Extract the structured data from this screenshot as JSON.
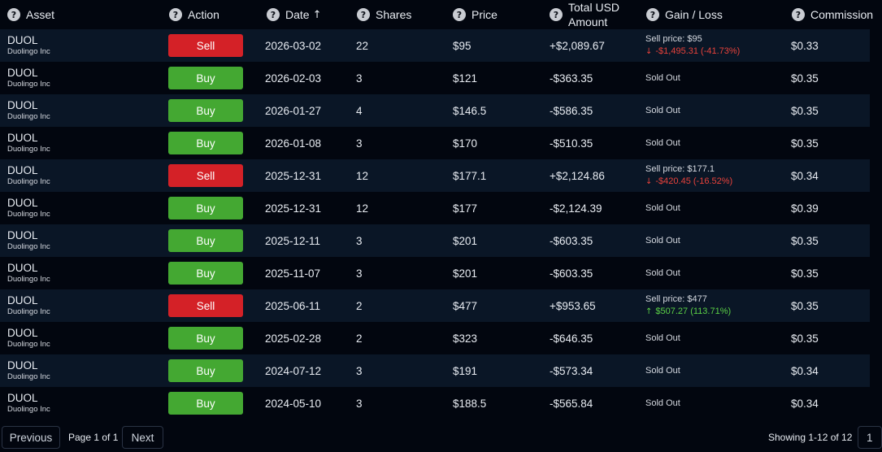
{
  "headers": {
    "asset": "Asset",
    "action": "Action",
    "date": "Date",
    "shares": "Shares",
    "price": "Price",
    "total_line1": "Total USD",
    "total_line2": "Amount",
    "gain_loss": "Gain / Loss",
    "commission": "Commission",
    "help_glyph": "?",
    "sort_glyph": "↑"
  },
  "rows": [
    {
      "ticker": "DUOL",
      "company": "Duolingo Inc",
      "action": "Sell",
      "date": "2026-03-02",
      "shares": "22",
      "price": "$95",
      "total": "+$2,089.67",
      "gain_type": "sale",
      "sell_price": "Sell price: $95",
      "change": "-$1,495.31 (-41.73%)",
      "direction": "down",
      "commission": "$0.33"
    },
    {
      "ticker": "DUOL",
      "company": "Duolingo Inc",
      "action": "Buy",
      "date": "2026-02-03",
      "shares": "3",
      "price": "$121",
      "total": "-$363.35",
      "gain_type": "soldout",
      "status": "Sold Out",
      "commission": "$0.35"
    },
    {
      "ticker": "DUOL",
      "company": "Duolingo Inc",
      "action": "Buy",
      "date": "2026-01-27",
      "shares": "4",
      "price": "$146.5",
      "total": "-$586.35",
      "gain_type": "soldout",
      "status": "Sold Out",
      "commission": "$0.35"
    },
    {
      "ticker": "DUOL",
      "company": "Duolingo Inc",
      "action": "Buy",
      "date": "2026-01-08",
      "shares": "3",
      "price": "$170",
      "total": "-$510.35",
      "gain_type": "soldout",
      "status": "Sold Out",
      "commission": "$0.35"
    },
    {
      "ticker": "DUOL",
      "company": "Duolingo Inc",
      "action": "Sell",
      "date": "2025-12-31",
      "shares": "12",
      "price": "$177.1",
      "total": "+$2,124.86",
      "gain_type": "sale",
      "sell_price": "Sell price: $177.1",
      "change": "-$420.45 (-16.52%)",
      "direction": "down",
      "commission": "$0.34"
    },
    {
      "ticker": "DUOL",
      "company": "Duolingo Inc",
      "action": "Buy",
      "date": "2025-12-31",
      "shares": "12",
      "price": "$177",
      "total": "-$2,124.39",
      "gain_type": "soldout",
      "status": "Sold Out",
      "commission": "$0.39"
    },
    {
      "ticker": "DUOL",
      "company": "Duolingo Inc",
      "action": "Buy",
      "date": "2025-12-11",
      "shares": "3",
      "price": "$201",
      "total": "-$603.35",
      "gain_type": "soldout",
      "status": "Sold Out",
      "commission": "$0.35"
    },
    {
      "ticker": "DUOL",
      "company": "Duolingo Inc",
      "action": "Buy",
      "date": "2025-11-07",
      "shares": "3",
      "price": "$201",
      "total": "-$603.35",
      "gain_type": "soldout",
      "status": "Sold Out",
      "commission": "$0.35"
    },
    {
      "ticker": "DUOL",
      "company": "Duolingo Inc",
      "action": "Sell",
      "date": "2025-06-11",
      "shares": "2",
      "price": "$477",
      "total": "+$953.65",
      "gain_type": "sale",
      "sell_price": "Sell price: $477",
      "change": "$507.27 (113.71%)",
      "direction": "up",
      "commission": "$0.35"
    },
    {
      "ticker": "DUOL",
      "company": "Duolingo Inc",
      "action": "Buy",
      "date": "2025-02-28",
      "shares": "2",
      "price": "$323",
      "total": "-$646.35",
      "gain_type": "soldout",
      "status": "Sold Out",
      "commission": "$0.35"
    },
    {
      "ticker": "DUOL",
      "company": "Duolingo Inc",
      "action": "Buy",
      "date": "2024-07-12",
      "shares": "3",
      "price": "$191",
      "total": "-$573.34",
      "gain_type": "soldout",
      "status": "Sold Out",
      "commission": "$0.34"
    },
    {
      "ticker": "DUOL",
      "company": "Duolingo Inc",
      "action": "Buy",
      "date": "2024-05-10",
      "shares": "3",
      "price": "$188.5",
      "total": "-$565.84",
      "gain_type": "soldout",
      "status": "Sold Out",
      "commission": "$0.34"
    }
  ],
  "pagination": {
    "previous_label": "Previous",
    "page_info": "Page 1 of 1",
    "next_label": "Next",
    "showing": "Showing 1-12 of 12",
    "page_number": "1"
  },
  "colors": {
    "sell": "#d42127",
    "buy": "#44a832",
    "loss": "#e8423b",
    "gain": "#5bd046",
    "row_alt": "#0a1626",
    "background": "#02060f"
  },
  "icons": {
    "help": "question-circle-icon",
    "sort": "arrow-up-icon",
    "loss": "arrow-down-icon",
    "gain": "arrow-up-icon"
  }
}
